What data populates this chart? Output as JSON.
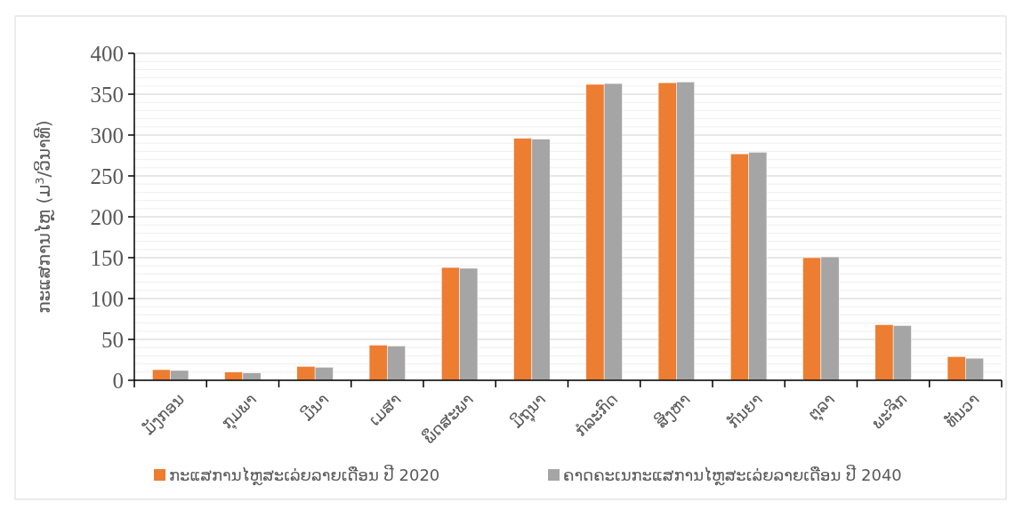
{
  "chart_data": {
    "type": "bar",
    "ylabel": "ກະແສການໄຫຼ (ມ$^{3}$/ວິນາທີ)",
    "categories": [
      "ມັງກອນ",
      "ກຸມພາ",
      "ມີນາ",
      "ເມສາ",
      "ພຶດສະພາ",
      "ມິຖຸນາ",
      "ກໍລະກົດ",
      "ສິງຫາ",
      "ກັນຍາ",
      "ຕຸລາ",
      "ພະຈິກ",
      "ທັນວາ"
    ],
    "series": [
      {
        "name": "ກະແສການໄຫຼສະເລ່ຍລາຍເດືອນ ປີ 2020",
        "color": "#ed7d31",
        "values": [
          13,
          10,
          17,
          43,
          138,
          296,
          362,
          364,
          277,
          150,
          68,
          29
        ]
      },
      {
        "name": "ຄາດຄະເນກະແສການໄຫຼສະເລ່ຍລາຍເດືອນ ປີ 2040",
        "color": "#a5a5a5",
        "values": [
          12,
          9,
          16,
          42,
          137,
          295,
          363,
          365,
          279,
          151,
          67,
          27
        ]
      }
    ],
    "ylim": [
      0,
      400
    ],
    "yticks": [
      0,
      {
        "value": 10,
        "label": null
      },
      {
        "value": 20,
        "label": null
      },
      {
        "value": 30,
        "label": null
      },
      {
        "value": 40,
        "label": null
      },
      50,
      {
        "value": 60,
        "label": null
      },
      {
        "value": 70,
        "label": null
      },
      {
        "value": 80,
        "label": null
      },
      {
        "value": 90,
        "label": null
      },
      100,
      {
        "value": 110,
        "label": null
      },
      {
        "value": 120,
        "label": null
      },
      {
        "value": 130,
        "label": null
      },
      {
        "value": 140,
        "label": null
      },
      150,
      {
        "value": 160,
        "label": null
      },
      {
        "value": 170,
        "label": null
      },
      {
        "value": 180,
        "label": null
      },
      {
        "value": 190,
        "label": null
      },
      200,
      {
        "value": 210,
        "label": null
      },
      {
        "value": 220,
        "label": null
      },
      {
        "value": 230,
        "label": null
      },
      {
        "value": 240,
        "label": null
      },
      250,
      {
        "value": 260,
        "label": null
      },
      {
        "value": 270,
        "label": null
      },
      {
        "value": 280,
        "label": null
      },
      {
        "value": 290,
        "label": null
      },
      300,
      {
        "value": 310,
        "label": null
      },
      {
        "value": 320,
        "label": null
      },
      {
        "value": 330,
        "label": null
      },
      {
        "value": 340,
        "label": null
      },
      350,
      {
        "value": 360,
        "label": null
      },
      {
        "value": 370,
        "label": null
      },
      {
        "value": 380,
        "label": null
      },
      {
        "value": 390,
        "label": null
      },
      400
    ],
    "grid": "y",
    "legend": "bottom"
  }
}
